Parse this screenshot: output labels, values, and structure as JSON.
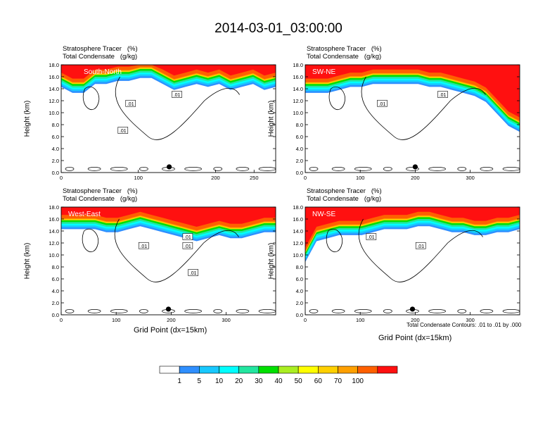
{
  "title": "2014-03-01_03:00:00",
  "panel_title_line1": "Stratosphere Tracer   (%)",
  "panel_title_line2": "Total Condensate   (g/kg)",
  "y_label": "Height (km)",
  "x_label": "Grid Point (dx=15km)",
  "contour_note": "Total Condensate Contours: .01 to .01 by .000",
  "contour_label": ".01",
  "chart_data": [
    {
      "type": "heatmap",
      "name": "South-North",
      "xlim": [
        0,
        278
      ],
      "xticks": [
        0,
        100,
        200
      ],
      "xticks_extra": [
        "250"
      ],
      "ylim": [
        0,
        18
      ],
      "yticks": [
        "0.0",
        "2.0",
        "4.0",
        "6.0",
        "8.0",
        "10.0",
        "12.0",
        "14.0",
        "16.0",
        "18.0"
      ],
      "tracer_band_base_km": [
        15.5,
        14.5,
        14.5,
        16.0,
        16.0,
        16.5,
        16.5,
        17.0,
        17.0,
        16.0,
        15.0,
        15.5,
        16.0,
        15.5,
        16.0,
        15.0,
        15.5,
        16.0,
        15.0,
        15.5
      ],
      "marker_x": 140,
      "contour_labels_x": [
        90,
        150,
        80
      ]
    },
    {
      "type": "heatmap",
      "name": "SW-NE",
      "xlim": [
        0,
        390
      ],
      "xticks": [
        0,
        100,
        200,
        300
      ],
      "ylim": [
        0,
        18
      ],
      "yticks": [
        "0.0",
        "2.0",
        "4.0",
        "6.0",
        "8.0",
        "10.0",
        "12.0",
        "14.0",
        "16.0",
        "18.0"
      ],
      "tracer_band_base_km": [
        14.5,
        14.5,
        14.5,
        15.0,
        15.5,
        15.5,
        16.0,
        16.0,
        16.0,
        16.0,
        16.0,
        15.5,
        15.5,
        15.0,
        14.5,
        14.0,
        13.0,
        11.0,
        9.0,
        8.0
      ],
      "marker_x": 200,
      "contour_labels_x": [
        140,
        250
      ]
    },
    {
      "type": "heatmap",
      "name": "West-East",
      "xlim": [
        0,
        390
      ],
      "xticks": [
        0,
        100,
        200,
        300
      ],
      "ylim": [
        0,
        18
      ],
      "yticks": [
        "0.0",
        "2.0",
        "4.0",
        "6.0",
        "8.0",
        "10.0",
        "12.0",
        "14.0",
        "16.0",
        "18.0"
      ],
      "tracer_band_base_km": [
        15.5,
        15.5,
        15.5,
        15.5,
        15.0,
        15.0,
        15.5,
        16.0,
        15.5,
        15.0,
        14.5,
        14.0,
        13.5,
        14.0,
        14.5,
        14.0,
        14.0,
        14.5,
        15.0,
        15.0
      ],
      "marker_x": 195,
      "contour_labels_x": [
        150,
        230,
        240,
        230
      ]
    },
    {
      "type": "heatmap",
      "name": "NW-SE",
      "xlim": [
        0,
        390
      ],
      "xticks": [
        0,
        100,
        200,
        300
      ],
      "ylim": [
        0,
        18
      ],
      "yticks": [
        "0.0",
        "2.0",
        "4.0",
        "6.0",
        "8.0",
        "10.0",
        "12.0",
        "14.0",
        "16.0",
        "18.0"
      ],
      "tracer_band_base_km": [
        10.0,
        13.5,
        14.0,
        14.5,
        14.5,
        14.5,
        15.0,
        15.5,
        15.5,
        15.5,
        16.0,
        16.0,
        15.5,
        15.0,
        15.0,
        14.5,
        14.5,
        15.0,
        15.0,
        15.5
      ],
      "marker_x": 195,
      "contour_labels_x": [
        210,
        120
      ]
    }
  ],
  "colorbar": {
    "levels": [
      "1",
      "5",
      "10",
      "20",
      "30",
      "40",
      "50",
      "60",
      "70",
      "100"
    ],
    "colors": [
      "#ffffff",
      "#2f8fff",
      "#18c8ff",
      "#00ffff",
      "#22e6a0",
      "#00e000",
      "#aaee22",
      "#ffff00",
      "#ffd000",
      "#ffa000",
      "#ff6000",
      "#ff1010"
    ]
  }
}
